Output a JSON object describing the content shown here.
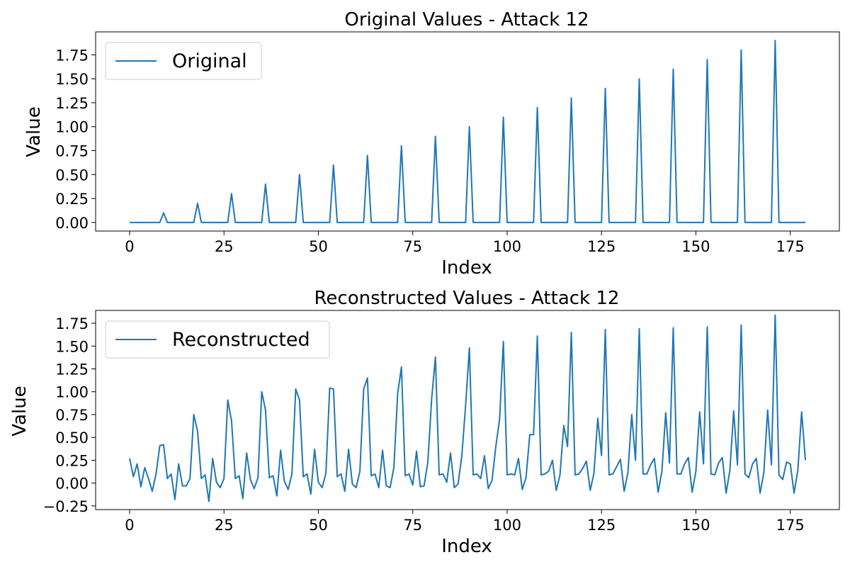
{
  "charts": [
    {
      "title": "Original Values - Attack 12",
      "xlabel": "Index",
      "ylabel": "Value",
      "xticks": [
        "0",
        "25",
        "50",
        "75",
        "100",
        "125",
        "150",
        "175"
      ],
      "yticks": [
        "0.00",
        "0.25",
        "0.50",
        "0.75",
        "1.00",
        "1.25",
        "1.50",
        "1.75"
      ],
      "legend": "Original"
    },
    {
      "title": "Reconstructed Values - Attack 12",
      "xlabel": "Index",
      "ylabel": "Value",
      "xticks": [
        "0",
        "25",
        "50",
        "75",
        "100",
        "125",
        "150",
        "175"
      ],
      "yticks": [
        "−0.25",
        "0.00",
        "0.25",
        "0.50",
        "0.75",
        "1.00",
        "1.25",
        "1.50",
        "1.75"
      ],
      "legend": "Reconstructed"
    }
  ],
  "chart_data": [
    {
      "type": "line",
      "title": "Original Values - Attack 12",
      "xlabel": "Index",
      "ylabel": "Value",
      "xlim": [
        -9,
        188
      ],
      "ylim": [
        -0.09,
        1.99
      ],
      "x_ticks": [
        0,
        25,
        50,
        75,
        100,
        125,
        150,
        175
      ],
      "y_ticks": [
        0,
        0.25,
        0.5,
        0.75,
        1.0,
        1.25,
        1.5,
        1.75
      ],
      "grid": false,
      "legend_position": "top-left",
      "color": "#1f77b4",
      "series": [
        {
          "name": "Original",
          "x": [
            0,
            1,
            2,
            3,
            4,
            5,
            6,
            7,
            8,
            9,
            10,
            11,
            12,
            13,
            14,
            15,
            16,
            17,
            18,
            19,
            20,
            21,
            22,
            23,
            24,
            25,
            26,
            27,
            28,
            29,
            30,
            31,
            32,
            33,
            34,
            35,
            36,
            37,
            38,
            39,
            40,
            41,
            42,
            43,
            44,
            45,
            46,
            47,
            48,
            49,
            50,
            51,
            52,
            53,
            54,
            55,
            56,
            57,
            58,
            59,
            60,
            61,
            62,
            63,
            64,
            65,
            66,
            67,
            68,
            69,
            70,
            71,
            72,
            73,
            74,
            75,
            76,
            77,
            78,
            79,
            80,
            81,
            82,
            83,
            84,
            85,
            86,
            87,
            88,
            89,
            90,
            91,
            92,
            93,
            94,
            95,
            96,
            97,
            98,
            99,
            100,
            101,
            102,
            103,
            104,
            105,
            106,
            107,
            108,
            109,
            110,
            111,
            112,
            113,
            114,
            115,
            116,
            117,
            118,
            119,
            120,
            121,
            122,
            123,
            124,
            125,
            126,
            127,
            128,
            129,
            130,
            131,
            132,
            133,
            134,
            135,
            136,
            137,
            138,
            139,
            140,
            141,
            142,
            143,
            144,
            145,
            146,
            147,
            148,
            149,
            150,
            151,
            152,
            153,
            154,
            155,
            156,
            157,
            158,
            159,
            160,
            161,
            162,
            163,
            164,
            165,
            166,
            167,
            168,
            169,
            170,
            171,
            172,
            173,
            174,
            175,
            176,
            177,
            178,
            179
          ],
          "y": [
            0,
            0,
            0,
            0,
            0,
            0,
            0,
            0,
            0,
            0.1,
            0,
            0,
            0,
            0,
            0,
            0,
            0,
            0,
            0.2,
            0,
            0,
            0,
            0,
            0,
            0,
            0,
            0,
            0.3,
            0,
            0,
            0,
            0,
            0,
            0,
            0,
            0,
            0.4,
            0,
            0,
            0,
            0,
            0,
            0,
            0,
            0,
            0.5,
            0,
            0,
            0,
            0,
            0,
            0,
            0,
            0,
            0.6,
            0,
            0,
            0,
            0,
            0,
            0,
            0,
            0,
            0.7,
            0,
            0,
            0,
            0,
            0,
            0,
            0,
            0,
            0.8,
            0,
            0,
            0,
            0,
            0,
            0,
            0,
            0,
            0.9,
            0,
            0,
            0,
            0,
            0,
            0,
            0,
            0,
            1.0,
            0,
            0,
            0,
            0,
            0,
            0,
            0,
            0,
            1.1,
            0,
            0,
            0,
            0,
            0,
            0,
            0,
            0,
            1.2,
            0,
            0,
            0,
            0,
            0,
            0,
            0,
            0,
            1.3,
            0,
            0,
            0,
            0,
            0,
            0,
            0,
            0,
            1.4,
            0,
            0,
            0,
            0,
            0,
            0,
            0,
            0,
            1.5,
            0,
            0,
            0,
            0,
            0,
            0,
            0,
            0,
            1.6,
            0,
            0,
            0,
            0,
            0,
            0,
            0,
            0,
            1.7,
            0,
            0,
            0,
            0,
            0,
            0,
            0,
            0,
            1.8,
            0,
            0,
            0,
            0,
            0,
            0,
            0,
            0,
            1.9,
            0,
            0,
            0,
            0,
            0,
            0,
            0,
            0
          ]
        }
      ]
    },
    {
      "type": "line",
      "title": "Reconstructed Values - Attack 12",
      "xlabel": "Index",
      "ylabel": "Value",
      "xlim": [
        -9,
        188
      ],
      "ylim": [
        -0.29,
        1.89
      ],
      "x_ticks": [
        0,
        25,
        50,
        75,
        100,
        125,
        150,
        175
      ],
      "y_ticks": [
        -0.25,
        0,
        0.25,
        0.5,
        0.75,
        1.0,
        1.25,
        1.5,
        1.75
      ],
      "grid": false,
      "legend_position": "top-left",
      "color": "#1f77b4",
      "series": [
        {
          "name": "Reconstructed",
          "x": [
            0,
            1,
            2,
            3,
            4,
            5,
            6,
            7,
            8,
            9,
            10,
            11,
            12,
            13,
            14,
            15,
            16,
            17,
            18,
            19,
            20,
            21,
            22,
            23,
            24,
            25,
            26,
            27,
            28,
            29,
            30,
            31,
            32,
            33,
            34,
            35,
            36,
            37,
            38,
            39,
            40,
            41,
            42,
            43,
            44,
            45,
            46,
            47,
            48,
            49,
            50,
            51,
            52,
            53,
            54,
            55,
            56,
            57,
            58,
            59,
            60,
            61,
            62,
            63,
            64,
            65,
            66,
            67,
            68,
            69,
            70,
            71,
            72,
            73,
            74,
            75,
            76,
            77,
            78,
            79,
            80,
            81,
            82,
            83,
            84,
            85,
            86,
            87,
            88,
            89,
            90,
            91,
            92,
            93,
            94,
            95,
            96,
            97,
            98,
            99,
            100,
            101,
            102,
            103,
            104,
            105,
            106,
            107,
            108,
            109,
            110,
            111,
            112,
            113,
            114,
            115,
            116,
            117,
            118,
            119,
            120,
            121,
            122,
            123,
            124,
            125,
            126,
            127,
            128,
            129,
            130,
            131,
            132,
            133,
            134,
            135,
            136,
            137,
            138,
            139,
            140,
            141,
            142,
            143,
            144,
            145,
            146,
            147,
            148,
            149,
            150,
            151,
            152,
            153,
            154,
            155,
            156,
            157,
            158,
            159,
            160,
            161,
            162,
            163,
            164,
            165,
            166,
            167,
            168,
            169,
            170,
            171,
            172,
            173,
            174,
            175,
            176,
            177,
            178,
            179
          ],
          "y": [
            0.27,
            0.07,
            0.21,
            -0.04,
            0.17,
            0.05,
            -0.09,
            0.1,
            0.41,
            0.42,
            0.05,
            0.1,
            -0.18,
            0.21,
            -0.03,
            -0.03,
            0.05,
            0.75,
            0.57,
            0.05,
            0.09,
            -0.2,
            0.27,
            0.01,
            -0.05,
            0.05,
            0.91,
            0.68,
            0.05,
            0.08,
            -0.17,
            0.33,
            0.04,
            -0.06,
            0.06,
            1.0,
            0.8,
            0.06,
            0.08,
            -0.14,
            0.36,
            0.02,
            -0.07,
            0.1,
            1.03,
            0.91,
            0.07,
            0.1,
            -0.12,
            0.37,
            0.01,
            -0.05,
            0.11,
            1.04,
            1.03,
            0.07,
            0.1,
            -0.09,
            0.37,
            -0.01,
            -0.05,
            0.13,
            1.03,
            1.15,
            0.08,
            0.1,
            -0.05,
            0.36,
            -0.03,
            -0.05,
            0.17,
            0.98,
            1.27,
            0.08,
            0.1,
            -0.02,
            0.35,
            -0.04,
            -0.03,
            0.23,
            0.92,
            1.38,
            0.09,
            0.1,
            0.01,
            0.33,
            -0.05,
            -0.01,
            0.3,
            0.85,
            1.48,
            0.09,
            0.1,
            0.05,
            0.3,
            -0.06,
            0.03,
            0.4,
            0.7,
            1.55,
            0.09,
            0.1,
            0.09,
            0.27,
            -0.07,
            0.06,
            0.53,
            0.53,
            1.61,
            0.09,
            0.1,
            0.13,
            0.25,
            -0.08,
            0.09,
            0.63,
            0.4,
            1.65,
            0.09,
            0.1,
            0.16,
            0.24,
            -0.08,
            0.11,
            0.71,
            0.3,
            1.68,
            0.09,
            0.1,
            0.18,
            0.26,
            -0.09,
            0.12,
            0.75,
            0.25,
            1.69,
            0.1,
            0.1,
            0.2,
            0.27,
            -0.1,
            0.13,
            0.77,
            0.22,
            1.7,
            0.1,
            0.1,
            0.21,
            0.28,
            -0.1,
            0.13,
            0.78,
            0.21,
            1.71,
            0.1,
            0.09,
            0.22,
            0.28,
            -0.11,
            0.14,
            0.79,
            0.2,
            1.73,
            0.1,
            0.06,
            0.21,
            0.27,
            -0.11,
            0.12,
            0.8,
            0.2,
            1.84,
            0.09,
            0.04,
            0.23,
            0.21,
            -0.11,
            0.14,
            0.78,
            0.25
          ]
        }
      ]
    }
  ]
}
